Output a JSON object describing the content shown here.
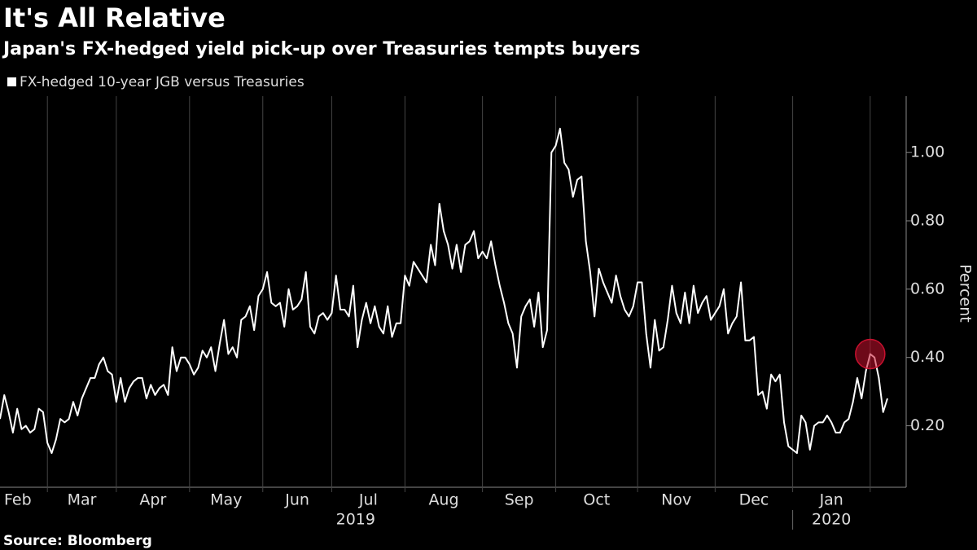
{
  "chart_data": {
    "type": "line",
    "title": "It's All Relative",
    "subtitle": "Japan's FX-hedged yield pick-up over Treasuries tempts buyers",
    "source": "Source: Bloomberg",
    "y_label": "Percent",
    "categories": [
      "Feb",
      null,
      null,
      null,
      null,
      null,
      null,
      null,
      null,
      null,
      null,
      "Mar",
      null,
      null,
      null,
      null,
      null,
      null,
      null,
      null,
      null,
      null,
      null,
      null,
      null,
      null,
      null,
      "Apr",
      null,
      null,
      null,
      null,
      null,
      null,
      null,
      null,
      null,
      null,
      null,
      null,
      null,
      null,
      null,
      null,
      "May",
      null,
      null,
      null,
      null,
      null,
      null,
      null,
      null,
      null,
      null,
      null,
      null,
      null,
      null,
      null,
      null,
      "Jun",
      null,
      null,
      null,
      null,
      null,
      null,
      null,
      null,
      null,
      null,
      null,
      null,
      null,
      null,
      null,
      "Jul",
      null,
      null,
      null,
      null,
      null,
      null,
      null,
      null,
      null,
      null,
      null,
      null,
      null,
      null,
      null,
      null,
      "Aug",
      null,
      null,
      null,
      null,
      null,
      null,
      null,
      null,
      null,
      null,
      null,
      null,
      null,
      null,
      null,
      null,
      null,
      "Sep",
      null,
      null,
      null,
      null,
      null,
      null,
      null,
      null,
      null,
      null,
      null,
      null,
      null,
      null,
      null,
      null,
      "Oct",
      null,
      null,
      null,
      null,
      null,
      null,
      null,
      null,
      null,
      null,
      null,
      null,
      null,
      null,
      null,
      null,
      null,
      null,
      "Nov",
      null,
      null,
      null,
      null,
      null,
      null,
      null,
      null,
      null,
      null,
      null,
      null,
      null,
      null,
      null,
      null,
      null,
      "Dec",
      null,
      null,
      null,
      null,
      null,
      null,
      null,
      null,
      null,
      null,
      null,
      null,
      null,
      null,
      null,
      null,
      null,
      "Jan",
      null,
      null,
      null,
      null,
      null,
      null,
      null,
      null,
      null,
      null,
      null,
      null,
      null,
      null,
      null,
      null,
      null,
      null,
      null,
      null,
      null,
      null
    ],
    "years": [
      "2019",
      "2020"
    ],
    "series": [
      {
        "name": "FX-hedged 10-year JGB versus Treasuries",
        "color": "#ffffff",
        "values": [
          0.22,
          0.29,
          0.24,
          0.18,
          0.25,
          0.19,
          0.2,
          0.18,
          0.19,
          0.25,
          0.24,
          0.15,
          0.12,
          0.16,
          0.22,
          0.21,
          0.22,
          0.27,
          0.23,
          0.28,
          0.31,
          0.34,
          0.34,
          0.38,
          0.4,
          0.36,
          0.35,
          0.27,
          0.34,
          0.27,
          0.31,
          0.33,
          0.34,
          0.34,
          0.28,
          0.32,
          0.29,
          0.31,
          0.32,
          0.29,
          0.43,
          0.36,
          0.4,
          0.4,
          0.38,
          0.35,
          0.37,
          0.42,
          0.4,
          0.43,
          0.36,
          0.44,
          0.51,
          0.41,
          0.43,
          0.4,
          0.51,
          0.52,
          0.55,
          0.48,
          0.58,
          0.6,
          0.65,
          0.56,
          0.55,
          0.56,
          0.49,
          0.6,
          0.54,
          0.55,
          0.57,
          0.65,
          0.49,
          0.47,
          0.52,
          0.53,
          0.51,
          0.53,
          0.64,
          0.54,
          0.54,
          0.52,
          0.61,
          0.43,
          0.51,
          0.56,
          0.5,
          0.55,
          0.49,
          0.47,
          0.55,
          0.46,
          0.5,
          0.5,
          0.64,
          0.61,
          0.68,
          0.66,
          0.64,
          0.62,
          0.73,
          0.67,
          0.85,
          0.77,
          0.73,
          0.66,
          0.73,
          0.65,
          0.73,
          0.74,
          0.77,
          0.69,
          0.71,
          0.69,
          0.74,
          0.67,
          0.61,
          0.56,
          0.5,
          0.47,
          0.37,
          0.52,
          0.55,
          0.57,
          0.49,
          0.59,
          0.43,
          0.48,
          1.0,
          1.02,
          1.07,
          0.97,
          0.95,
          0.87,
          0.92,
          0.93,
          0.74,
          0.65,
          0.52,
          0.66,
          0.62,
          0.59,
          0.56,
          0.64,
          0.58,
          0.54,
          0.52,
          0.55,
          0.62,
          0.62,
          0.47,
          0.37,
          0.51,
          0.42,
          0.43,
          0.51,
          0.61,
          0.53,
          0.5,
          0.59,
          0.5,
          0.61,
          0.53,
          0.56,
          0.58,
          0.51,
          0.53,
          0.55,
          0.6,
          0.47,
          0.5,
          0.52,
          0.62,
          0.45,
          0.45,
          0.46,
          0.29,
          0.3,
          0.25,
          0.35,
          0.33,
          0.35,
          0.21,
          0.14,
          0.13,
          0.12,
          0.23,
          0.21,
          0.13,
          0.2,
          0.21,
          0.21,
          0.23,
          0.21,
          0.18,
          0.18,
          0.21,
          0.22,
          0.27,
          0.34,
          0.28,
          0.36,
          0.41,
          0.4,
          0.34,
          0.24,
          0.28
        ]
      }
    ],
    "ylim": [
      0.02,
      1.165
    ],
    "yticks": [
      {
        "value": 0.2,
        "label": "0.20"
      },
      {
        "value": 0.4,
        "label": "0.40"
      },
      {
        "value": 0.6,
        "label": "0.60"
      },
      {
        "value": 0.8,
        "label": "0.80"
      },
      {
        "value": 1.0,
        "label": "1.00"
      }
    ],
    "highlight_color": "#c8102e"
  }
}
